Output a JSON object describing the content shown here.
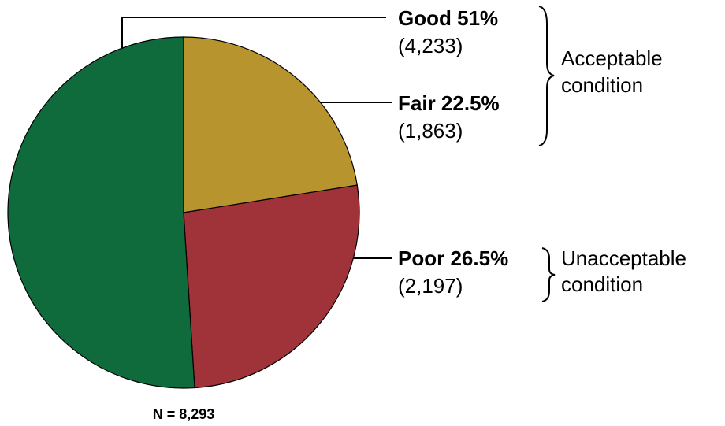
{
  "chart_data": {
    "type": "pie",
    "categories": [
      "Fair",
      "Poor",
      "Good"
    ],
    "values": [
      22.5,
      26.5,
      51
    ],
    "value_labels": [
      "22.5%",
      "26.5%",
      "51%"
    ],
    "count_labels": [
      "(1,863)",
      "(2,197)",
      "(4,233)"
    ],
    "colors": [
      "#b8942f",
      "#a0333a",
      "#106b3c"
    ],
    "groups": [
      {
        "lines": [
          "Acceptable",
          "condition"
        ]
      },
      {
        "lines": [
          "Unacceptable",
          "condition"
        ]
      }
    ],
    "note": "N = 8,293"
  }
}
